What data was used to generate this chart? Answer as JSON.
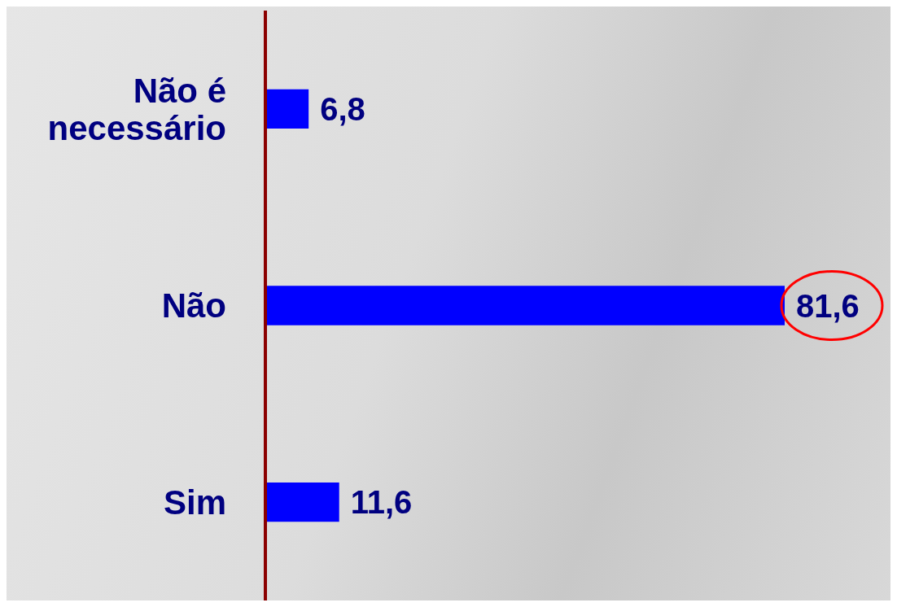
{
  "chart_data": {
    "type": "bar",
    "orientation": "horizontal",
    "categories": [
      "Não é necessário",
      "Não",
      "Sim"
    ],
    "values": [
      6.8,
      81.6,
      11.6
    ],
    "color": "#0000ff",
    "value_labels": [
      "6,8",
      "81,6",
      "11,6"
    ]
  }
}
